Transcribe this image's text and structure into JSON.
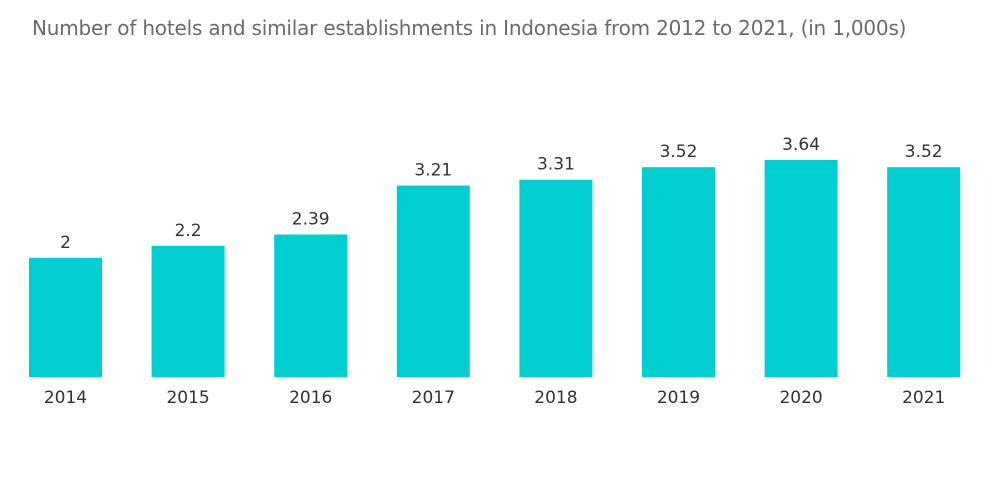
{
  "title": "Number of hotels and similar establishments in Indonesia from 2012 to 2021, (in 1,000s)",
  "colors": {
    "bar": "#00ced1",
    "text": "#333333",
    "title": "#6b6b6b"
  },
  "chart_data": {
    "type": "bar",
    "title": "Number of hotels and similar establishments in Indonesia from 2012 to 2021, (in 1,000s)",
    "categories": [
      "2014",
      "2015",
      "2016",
      "2017",
      "2018",
      "2019",
      "2020",
      "2021"
    ],
    "values": [
      2,
      2.2,
      2.39,
      3.21,
      3.31,
      3.52,
      3.64,
      3.52
    ],
    "value_labels": [
      "2",
      "2.2",
      "2.39",
      "3.21",
      "3.31",
      "3.52",
      "3.64",
      "3.52"
    ],
    "xlabel": "",
    "ylabel": "",
    "ylim": [
      0,
      3.64
    ],
    "grid": false,
    "legend": "none"
  }
}
